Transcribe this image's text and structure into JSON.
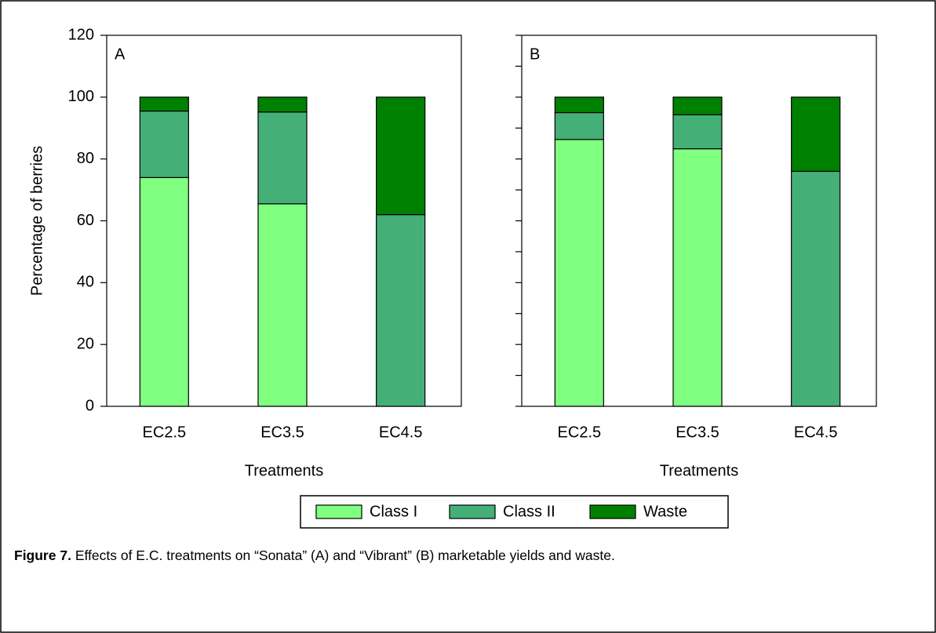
{
  "chart_data": [
    {
      "type": "bar",
      "panel": "A",
      "ylabel": "Percentage of berries",
      "xlabel": "Treatments",
      "categories": [
        "EC2.5",
        "EC3.5",
        "EC4.5"
      ],
      "series": [
        {
          "name": "Class I",
          "color": "#80ff80",
          "values": [
            74,
            65.5,
            0
          ]
        },
        {
          "name": "Class II",
          "color": "#44b077",
          "values": [
            21.5,
            29.7,
            62
          ]
        },
        {
          "name": "Waste",
          "color": "#008000",
          "values": [
            4.5,
            4.8,
            38
          ]
        }
      ],
      "ylim": [
        0,
        120
      ],
      "yticks": [
        0,
        20,
        40,
        60,
        80,
        100,
        120
      ]
    },
    {
      "type": "bar",
      "panel": "B",
      "xlabel": "Treatments",
      "categories": [
        "EC2.5",
        "EC3.5",
        "EC4.5"
      ],
      "series": [
        {
          "name": "Class I",
          "color": "#80ff80",
          "values": [
            86.3,
            83.3,
            0
          ]
        },
        {
          "name": "Class II",
          "color": "#44b077",
          "values": [
            8.7,
            11,
            76
          ]
        },
        {
          "name": "Waste",
          "color": "#008000",
          "values": [
            5,
            5.7,
            24
          ]
        }
      ],
      "ylim": [
        0,
        120
      ],
      "yticks": [
        0,
        10,
        20,
        30,
        40,
        50,
        60,
        70,
        80,
        90,
        100,
        110,
        120
      ]
    }
  ],
  "caption": {
    "label": "Figure 7.",
    "text": "Effects of E.C. treatments on “Sonata” (A) and “Vibrant” (B) marketable yields and waste."
  }
}
